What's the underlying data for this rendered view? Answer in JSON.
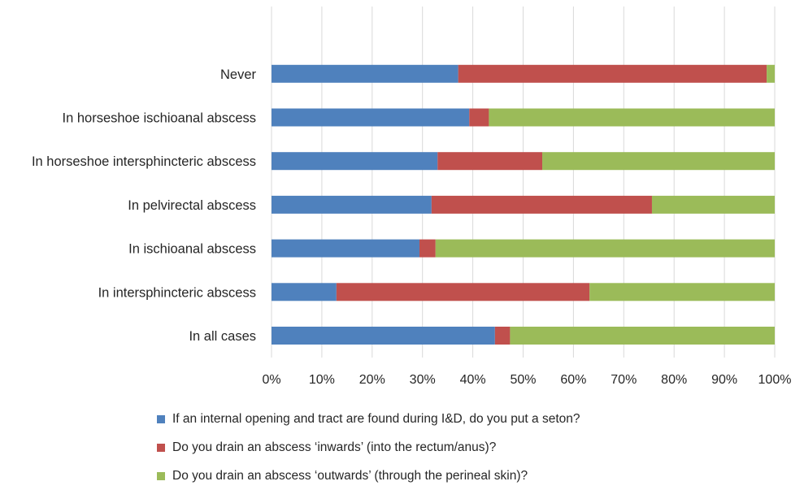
{
  "chart_data": {
    "type": "bar",
    "orientation": "horizontal",
    "stacked": "100%",
    "title": "",
    "xlabel": "",
    "ylabel": "",
    "xlim": [
      0,
      100
    ],
    "x_ticks": [
      "0%",
      "10%",
      "20%",
      "30%",
      "40%",
      "50%",
      "60%",
      "70%",
      "80%",
      "90%",
      "100%"
    ],
    "grid": "vertical",
    "legend_position": "bottom",
    "categories": [
      "In all cases",
      "In intersphincteric abscess",
      "In ischioanal abscess",
      "In pelvirectal abscess",
      "In horseshoe intersphincteric abscess",
      "In horseshoe ischioanal abscess",
      "Never"
    ],
    "series": [
      {
        "name": "If an internal opening and tract are found during I&D, do you put a seton?",
        "color": "#4f81bd",
        "values": [
          44.4,
          12.9,
          29.4,
          31.8,
          33.0,
          39.3,
          37.1
        ]
      },
      {
        "name": "Do you drain an abscess ‘inwards’ (into the rectum/anus)?",
        "color": "#c0504d",
        "values": [
          3.0,
          50.3,
          3.2,
          43.8,
          20.8,
          3.9,
          61.3
        ]
      },
      {
        "name": "Do you drain an abscess ‘outwards’ (through the perineal skin)?",
        "color": "#9bbb59",
        "values": [
          52.6,
          36.8,
          67.4,
          24.4,
          46.2,
          56.8,
          1.6
        ]
      }
    ]
  }
}
